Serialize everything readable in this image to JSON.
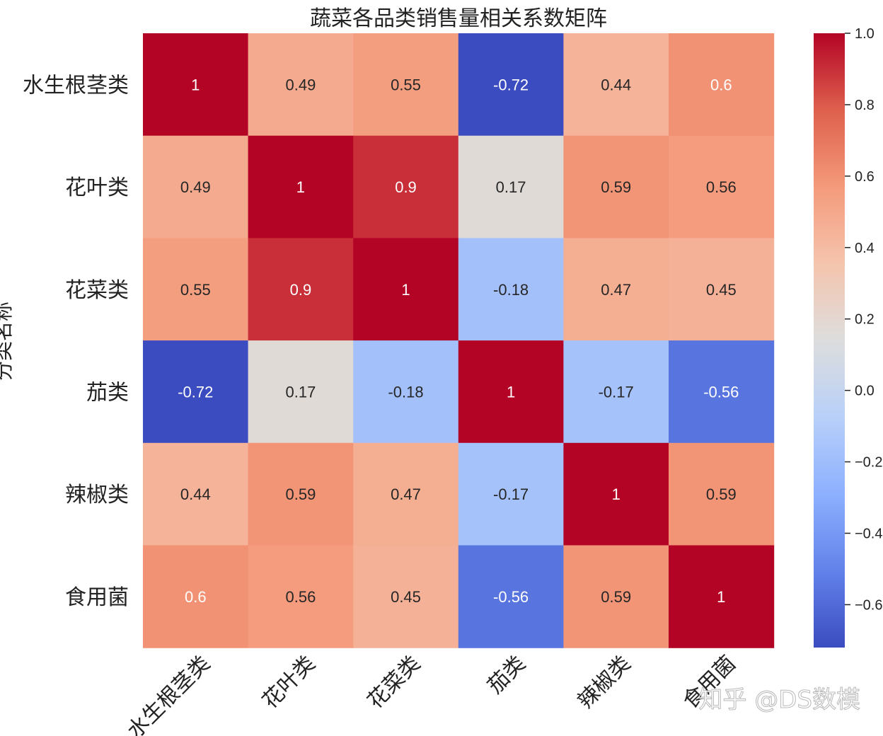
{
  "chart_data": {
    "type": "heatmap",
    "title": "蔬菜各品类销售量相关系数矩阵",
    "xlabel": "",
    "ylabel": "分类名称",
    "rows": [
      "水生根茎类",
      "花叶类",
      "花菜类",
      "茄类",
      "辣椒类",
      "食用菌"
    ],
    "cols": [
      "水生根茎类",
      "花叶类",
      "花菜类",
      "茄类",
      "辣椒类",
      "食用菌"
    ],
    "values": [
      [
        1,
        0.49,
        0.55,
        -0.72,
        0.44,
        0.6
      ],
      [
        0.49,
        1,
        0.9,
        0.17,
        0.59,
        0.56
      ],
      [
        0.55,
        0.9,
        1,
        -0.18,
        0.47,
        0.45
      ],
      [
        -0.72,
        0.17,
        -0.18,
        1,
        -0.17,
        -0.56
      ],
      [
        0.44,
        0.59,
        0.47,
        -0.17,
        1,
        0.59
      ],
      [
        0.6,
        0.56,
        0.45,
        -0.56,
        0.59,
        1
      ]
    ],
    "labels": [
      [
        "1",
        "0.49",
        "0.55",
        "-0.72",
        "0.44",
        "0.6"
      ],
      [
        "0.49",
        "1",
        "0.9",
        "0.17",
        "0.59",
        "0.56"
      ],
      [
        "0.55",
        "0.9",
        "1",
        "-0.18",
        "0.47",
        "0.45"
      ],
      [
        "-0.72",
        "0.17",
        "-0.18",
        "1",
        "-0.17",
        "-0.56"
      ],
      [
        "0.44",
        "0.59",
        "0.47",
        "-0.17",
        "1",
        "0.59"
      ],
      [
        "0.6",
        "0.56",
        "0.45",
        "-0.56",
        "0.59",
        "1"
      ]
    ],
    "colormap": "coolwarm",
    "colorbar": {
      "vmin": -0.72,
      "vmax": 1.0,
      "ticks": [
        1.0,
        0.8,
        0.6,
        0.4,
        0.2,
        0.0,
        -0.2,
        -0.4,
        -0.6
      ],
      "tick_labels": [
        "1.0",
        "0.8",
        "0.6",
        "0.4",
        "0.2",
        "0.0",
        "−0.2",
        "−0.4",
        "−0.6"
      ]
    }
  },
  "watermark": "知乎 @DS数模"
}
